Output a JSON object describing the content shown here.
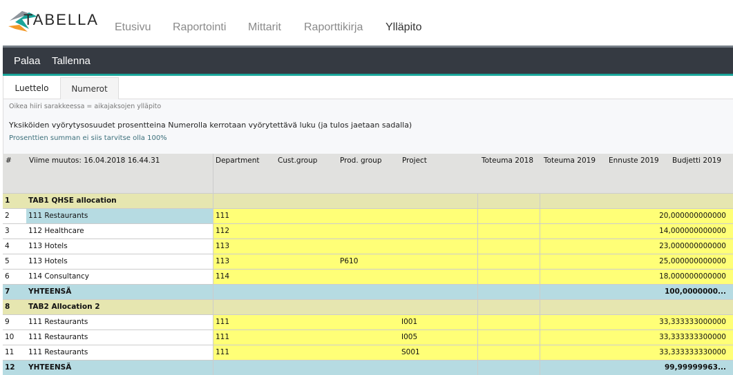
{
  "app": {
    "logo_text": "TABELLA",
    "nav": [
      "Etusivu",
      "Raportointi",
      "Mittarit",
      "Raporttikirja",
      "Ylläpito"
    ],
    "active_nav": "Ylläpito"
  },
  "toolbar": {
    "back": "Palaa",
    "save": "Tallenna"
  },
  "tabs": [
    "Luettelo",
    "Numerot"
  ],
  "info": {
    "hint": "Oikea hiiri sarakkeessa = aikajaksojen ylläpito",
    "description": "Yksiköiden vyörytysosuudet prosentteina Numerolla kerrotaan vyörytettävä luku (ja tulos jaetaan sadalla)",
    "note": "Prosenttien summan ei siis tarvitse olla 100%"
  },
  "table": {
    "headers": {
      "num": "#",
      "name": "Viime muutos: 16.04.2018 16.44.31",
      "department": "Department",
      "cust_group": "Cust.group",
      "prod_group": "Prod. group",
      "project": "Project",
      "toteuma2018": "Toteuma 2018",
      "toteuma2019": "Toteuma 2019",
      "ennuste2019": "Ennuste 2019",
      "budjetti2019": "Budjetti 2019"
    },
    "rows": [
      {
        "type": "group",
        "num": "1",
        "name": "TAB1 QHSE allocation",
        "department": "",
        "prod_group": "",
        "project": "",
        "budjetti": ""
      },
      {
        "type": "data",
        "num": "2",
        "name": "111 Restaurants",
        "department": "111",
        "prod_group": "",
        "project": "",
        "budjetti": "20,000000000000",
        "selected": true
      },
      {
        "type": "data",
        "num": "3",
        "name": "112 Healthcare",
        "department": "112",
        "prod_group": "",
        "project": "",
        "budjetti": "14,000000000000"
      },
      {
        "type": "data",
        "num": "4",
        "name": "113 Hotels",
        "department": "113",
        "prod_group": "",
        "project": "",
        "budjetti": "23,000000000000"
      },
      {
        "type": "data",
        "num": "5",
        "name": "113 Hotels",
        "department": "113",
        "prod_group": "P610",
        "project": "",
        "budjetti": "25,000000000000"
      },
      {
        "type": "data",
        "num": "6",
        "name": "114 Consultancy",
        "department": "114",
        "prod_group": "",
        "project": "",
        "budjetti": "18,000000000000"
      },
      {
        "type": "total",
        "num": "7",
        "name": "YHTEENSÄ",
        "department": "",
        "prod_group": "",
        "project": "",
        "budjetti": "100,0000000..."
      },
      {
        "type": "group",
        "num": "8",
        "name": "TAB2 Allocation 2",
        "department": "",
        "prod_group": "",
        "project": "",
        "budjetti": ""
      },
      {
        "type": "data",
        "num": "9",
        "name": "111 Restaurants",
        "department": "111",
        "prod_group": "",
        "project": "I001",
        "budjetti": "33,333333000000"
      },
      {
        "type": "data",
        "num": "10",
        "name": "111 Restaurants",
        "department": "111",
        "prod_group": "",
        "project": "I005",
        "budjetti": "33,333333300000"
      },
      {
        "type": "data",
        "num": "11",
        "name": "111 Restaurants",
        "department": "111",
        "prod_group": "",
        "project": "S001",
        "budjetti": "33,333333330000"
      },
      {
        "type": "total",
        "num": "12",
        "name": "YHTEENSÄ",
        "department": "",
        "prod_group": "",
        "project": "",
        "budjetti": "99,99999963..."
      }
    ]
  },
  "colors": {
    "toolbar": "#353a42",
    "accent": "#1aa59a",
    "group_row": "#e6e6b0",
    "data_cell": "#ffff77",
    "total_row": "#b6dbe2",
    "selected": "#b6dbe2"
  }
}
